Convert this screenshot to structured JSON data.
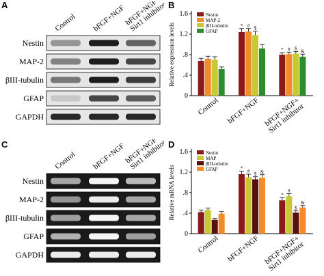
{
  "panels": {
    "A": {
      "letter": "A",
      "lanes": [
        "Control",
        "bFGF+NGF",
        "bFGF+NGF+\nSirt1 inhibitor"
      ],
      "rows": [
        "Nestin",
        "MAP-2",
        "βIII-tubulin",
        "GFAP",
        "GAPDH"
      ],
      "band_intensity": [
        [
          0.35,
          0.95,
          0.6
        ],
        [
          0.45,
          0.95,
          0.75
        ],
        [
          0.5,
          0.95,
          0.8
        ],
        [
          0.1,
          0.75,
          0.65
        ],
        [
          0.9,
          0.9,
          0.9
        ]
      ]
    },
    "C": {
      "letter": "C",
      "lanes": [
        "Control",
        "bFGF+NGF",
        "bFGF+NGF+\nSirt1 inhibitor"
      ],
      "rows": [
        "Nestin",
        "MAP-2",
        "βIII-tubulin",
        "GFAP",
        "GAPDH"
      ],
      "band_intensity": [
        [
          0.55,
          0.95,
          0.65
        ],
        [
          0.45,
          0.9,
          0.55
        ],
        [
          0.5,
          0.95,
          0.55
        ],
        [
          0.6,
          0.95,
          0.5
        ],
        [
          0.9,
          0.9,
          0.9
        ]
      ]
    }
  },
  "chart_data": [
    {
      "panel": "B",
      "type": "bar",
      "ylabel": "Relative expression levels",
      "ylim": [
        0,
        1.6
      ],
      "yticks": [
        "0",
        ".4",
        ".8",
        "1.2",
        "1.6"
      ],
      "categories": [
        "Control",
        "bFGF+NGF",
        "bFGF+NGF+\nSirt1 inhibitor"
      ],
      "series": [
        {
          "name": "Nestin",
          "color": "#8b1a1a",
          "values": [
            0.68,
            1.24,
            0.8
          ],
          "errors": [
            0.05,
            0.07,
            0.04
          ]
        },
        {
          "name": "MAP-2",
          "color": "#f28c28",
          "values": [
            0.72,
            1.25,
            0.81
          ],
          "errors": [
            0.05,
            0.06,
            0.04
          ]
        },
        {
          "name": "βIII-tubulin",
          "color": "#c8c832",
          "values": [
            0.7,
            1.18,
            0.82
          ],
          "errors": [
            0.06,
            0.08,
            0.04
          ]
        },
        {
          "name": "GFAP",
          "color": "#2e8b2e",
          "values": [
            0.52,
            0.92,
            0.76
          ],
          "errors": [
            0.04,
            0.08,
            0.05
          ]
        }
      ],
      "annotations": [
        [
          "",
          "",
          ""
        ],
        [
          "*",
          "#",
          "$"
        ],
        [
          "*",
          "#",
          "$",
          "&"
        ]
      ],
      "legend": "top-left"
    },
    {
      "panel": "D",
      "type": "bar",
      "ylabel": "Relative mRNA levels",
      "ylim": [
        0,
        1.6
      ],
      "yticks": [
        "0",
        ".4",
        ".8",
        "1.2",
        "1.6"
      ],
      "categories": [
        "Control",
        "bFGF+NGF",
        "bFGF+NGF+\nSirt1 inhibitor"
      ],
      "series": [
        {
          "name": "Nestin",
          "color": "#8b1a1a",
          "values": [
            0.42,
            1.16,
            0.65
          ],
          "errors": [
            0.04,
            0.06,
            0.05
          ]
        },
        {
          "name": "MAP",
          "color": "#c8c832",
          "values": [
            0.46,
            1.1,
            0.73
          ],
          "errors": [
            0.04,
            0.06,
            0.05
          ]
        },
        {
          "name": "βIII-tubulin",
          "color": "#5a0f0f",
          "values": [
            0.27,
            1.06,
            0.41
          ],
          "errors": [
            0.03,
            0.05,
            0.04
          ]
        },
        {
          "name": "GFAP",
          "color": "#f28c28",
          "values": [
            0.39,
            1.09,
            0.51
          ],
          "errors": [
            0.04,
            0.06,
            0.04
          ]
        }
      ],
      "annotations": [
        [
          "",
          "",
          ""
        ],
        [
          "*",
          "#",
          "$",
          "&"
        ],
        [
          "*",
          "#",
          "$",
          "&"
        ]
      ],
      "legend": "top-left"
    }
  ],
  "labels": {
    "B": "B",
    "D": "D"
  }
}
